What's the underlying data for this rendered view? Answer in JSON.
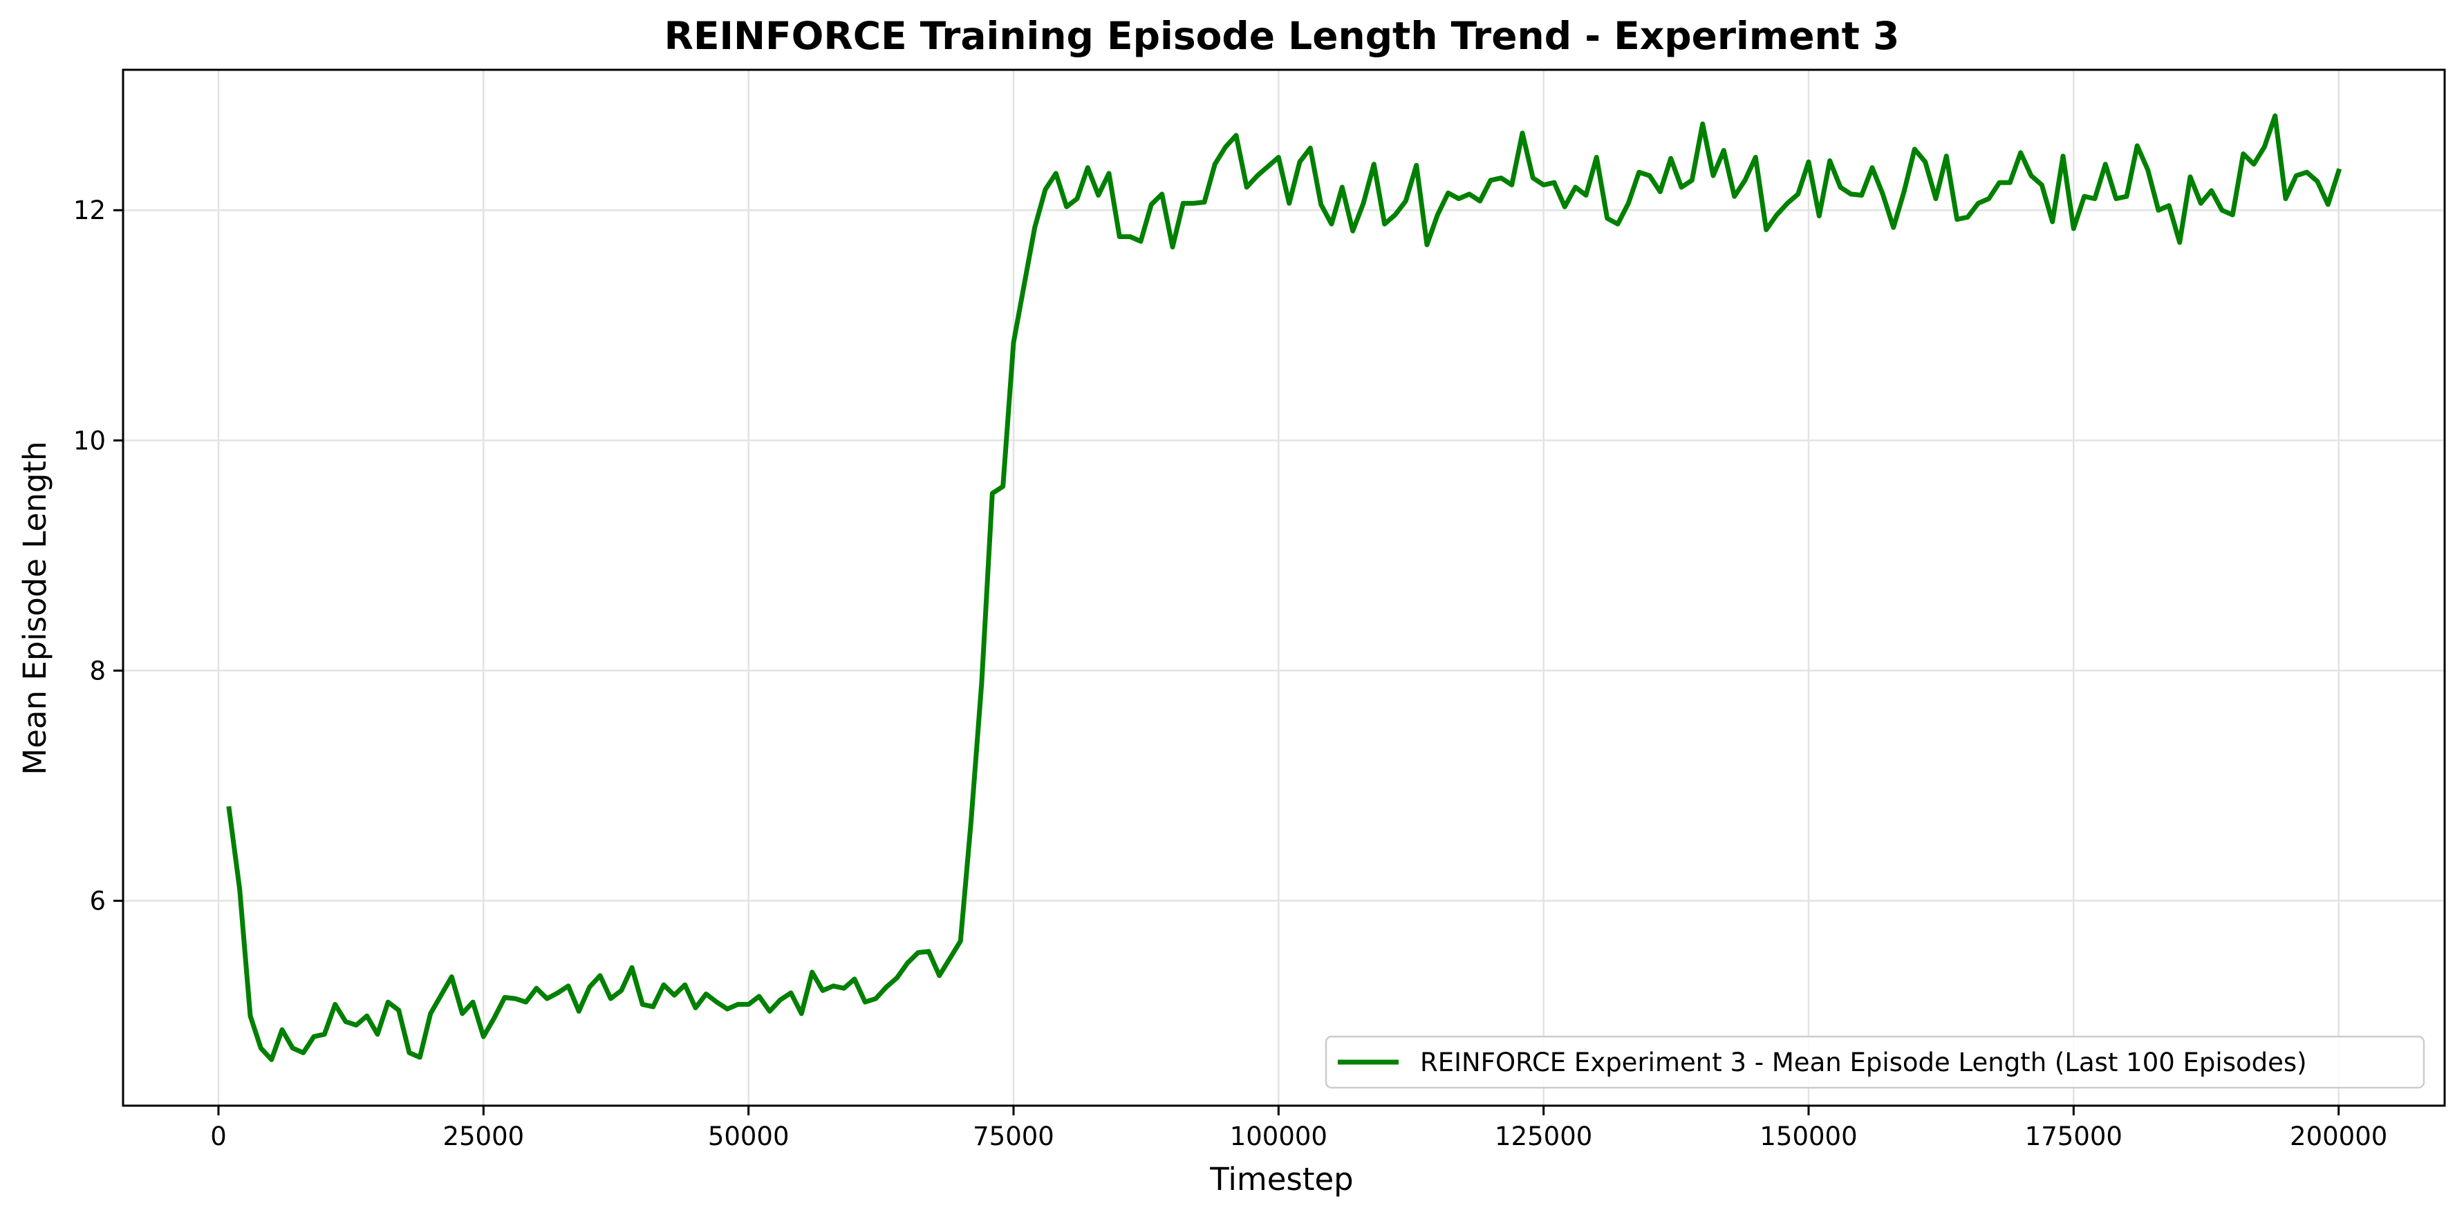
{
  "chart_data": {
    "type": "line",
    "title": "REINFORCE Training Episode Length Trend - Experiment 3",
    "xlabel": "Timestep",
    "ylabel": "Mean Episode Length",
    "xlim": [
      -9000,
      210000
    ],
    "ylim": [
      4.22,
      13.22
    ],
    "xticks": [
      0,
      25000,
      50000,
      75000,
      100000,
      125000,
      150000,
      175000,
      200000
    ],
    "yticks": [
      6,
      8,
      10,
      12
    ],
    "grid": true,
    "legend_position": "lower-right",
    "series": [
      {
        "name": "REINFORCE Experiment 3 - Mean Episode Length (Last 100 Episodes)",
        "color": "#008000",
        "x": [
          1000,
          2000,
          3000,
          4000,
          5000,
          6000,
          7000,
          8000,
          9000,
          10000,
          11000,
          12000,
          13000,
          14000,
          15000,
          16000,
          17000,
          18000,
          19000,
          20000,
          21000,
          22000,
          23000,
          24000,
          25000,
          26000,
          27000,
          28000,
          29000,
          30000,
          31000,
          32000,
          33000,
          34000,
          35000,
          36000,
          37000,
          38000,
          39000,
          40000,
          41000,
          42000,
          43000,
          44000,
          45000,
          46000,
          47000,
          48000,
          49000,
          50000,
          51000,
          52000,
          53000,
          54000,
          55000,
          56000,
          57000,
          58000,
          59000,
          60000,
          61000,
          62000,
          63000,
          64000,
          65000,
          66000,
          67000,
          68000,
          69000,
          70000,
          71000,
          72000,
          73000,
          74000,
          75000,
          76000,
          77000,
          78000,
          79000,
          80000,
          81000,
          82000,
          83000,
          84000,
          85000,
          86000,
          87000,
          88000,
          89000,
          90000,
          91000,
          92000,
          93000,
          94000,
          95000,
          96000,
          97000,
          98000,
          99000,
          100000,
          101000,
          102000,
          103000,
          104000,
          105000,
          106000,
          107000,
          108000,
          109000,
          110000,
          111000,
          112000,
          113000,
          114000,
          115000,
          116000,
          117000,
          118000,
          119000,
          120000,
          121000,
          122000,
          123000,
          124000,
          125000,
          126000,
          127000,
          128000,
          129000,
          130000,
          131000,
          132000,
          133000,
          134000,
          135000,
          136000,
          137000,
          138000,
          139000,
          140000,
          141000,
          142000,
          143000,
          144000,
          145000,
          146000,
          147000,
          148000,
          149000,
          150000,
          151000,
          152000,
          153000,
          154000,
          155000,
          156000,
          157000,
          158000,
          159000,
          160000,
          161000,
          162000,
          163000,
          164000,
          165000,
          166000,
          167000,
          168000,
          169000,
          170000,
          171000,
          172000,
          173000,
          174000,
          175000,
          176000,
          177000,
          178000,
          179000,
          180000,
          181000,
          182000,
          183000,
          184000,
          185000,
          186000,
          187000,
          188000,
          189000,
          190000,
          191000,
          192000,
          193000,
          194000,
          195000,
          196000,
          197000,
          198000,
          199000,
          200000
        ],
        "values": [
          6.8,
          6.1,
          5.0,
          4.72,
          4.62,
          4.88,
          4.72,
          4.68,
          4.82,
          4.84,
          5.1,
          4.95,
          4.92,
          5.0,
          4.84,
          5.12,
          5.05,
          4.68,
          4.64,
          5.02,
          5.18,
          5.34,
          5.02,
          5.12,
          4.82,
          4.98,
          5.16,
          5.15,
          5.12,
          5.24,
          5.15,
          5.2,
          5.26,
          5.04,
          5.25,
          5.35,
          5.15,
          5.22,
          5.42,
          5.1,
          5.08,
          5.27,
          5.18,
          5.27,
          5.07,
          5.19,
          5.12,
          5.06,
          5.1,
          5.1,
          5.17,
          5.04,
          5.14,
          5.2,
          5.02,
          5.38,
          5.22,
          5.26,
          5.24,
          5.32,
          5.12,
          5.15,
          5.25,
          5.33,
          5.46,
          5.55,
          5.56,
          5.35,
          5.5,
          5.65,
          6.7,
          7.9,
          9.54,
          9.6,
          10.85,
          11.35,
          11.85,
          12.18,
          12.32,
          12.03,
          12.1,
          12.37,
          12.13,
          12.32,
          11.77,
          11.77,
          11.73,
          12.05,
          12.14,
          11.68,
          12.06,
          12.06,
          12.07,
          12.4,
          12.55,
          12.65,
          12.2,
          12.3,
          12.38,
          12.46,
          12.06,
          12.42,
          12.54,
          12.05,
          11.88,
          12.2,
          11.82,
          12.06,
          12.4,
          11.88,
          11.96,
          12.08,
          12.39,
          11.7,
          11.96,
          12.15,
          12.1,
          12.14,
          12.08,
          12.26,
          12.28,
          12.22,
          12.67,
          12.28,
          12.22,
          12.24,
          12.03,
          12.2,
          12.13,
          12.46,
          11.93,
          11.88,
          12.06,
          12.33,
          12.3,
          12.16,
          12.45,
          12.2,
          12.26,
          12.75,
          12.3,
          12.52,
          12.12,
          12.26,
          12.46,
          11.83,
          11.96,
          12.06,
          12.14,
          12.42,
          11.95,
          12.43,
          12.2,
          12.14,
          12.13,
          12.37,
          12.14,
          11.85,
          12.16,
          12.53,
          12.42,
          12.1,
          12.47,
          11.92,
          11.94,
          12.06,
          12.1,
          12.24,
          12.24,
          12.5,
          12.3,
          12.22,
          11.9,
          12.47,
          11.84,
          12.12,
          12.1,
          12.4,
          12.1,
          12.12,
          12.56,
          12.35,
          12.0,
          12.04,
          11.72,
          12.29,
          12.06,
          12.17,
          12.0,
          11.96,
          12.49,
          12.4,
          12.55,
          12.82,
          12.1,
          12.3,
          12.33,
          12.25,
          12.05,
          12.34
        ]
      }
    ]
  }
}
